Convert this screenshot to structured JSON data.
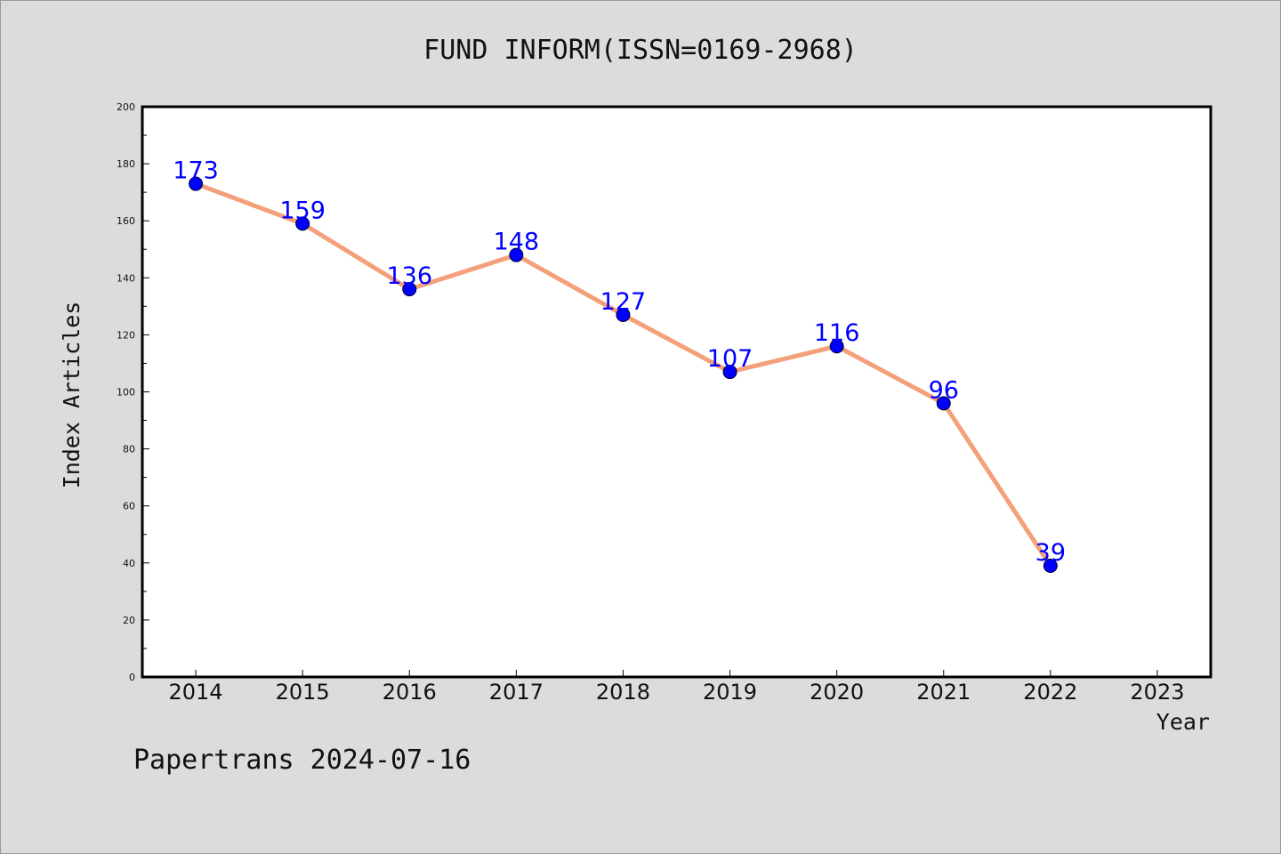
{
  "chart_data": {
    "type": "line",
    "title": "FUND INFORM(ISSN=0169-2968)",
    "xlabel": "Year",
    "ylabel": "Index Articles",
    "x": [
      2014,
      2015,
      2016,
      2017,
      2018,
      2019,
      2020,
      2021,
      2022
    ],
    "x_ticks": [
      "2014",
      "2015",
      "2016",
      "2017",
      "2018",
      "2019",
      "2020",
      "2021",
      "2022",
      "2023"
    ],
    "series": [
      {
        "values": [
          173,
          159,
          136,
          148,
          127,
          107,
          116,
          96,
          39
        ],
        "line_color": "#f4a07a",
        "marker_color": "#0000ff"
      }
    ],
    "data_labels": [
      "173",
      "159",
      "136",
      "148",
      "127",
      "107",
      "116",
      "96",
      "39"
    ],
    "ylim": [
      0,
      200
    ],
    "y_ticks": [
      "0",
      "20",
      "40",
      "60",
      "80",
      "100",
      "120",
      "140",
      "160",
      "180",
      "200"
    ],
    "xlim": [
      2013.5,
      2023.5
    ],
    "grid": false,
    "legend": "none"
  },
  "footer": {
    "source": "Papertrans 2024-07-16"
  },
  "colors": {
    "background": "#dcdcdc",
    "plot_background": "#ffffff",
    "axis": "#000000",
    "data_label": "#0000ff"
  }
}
